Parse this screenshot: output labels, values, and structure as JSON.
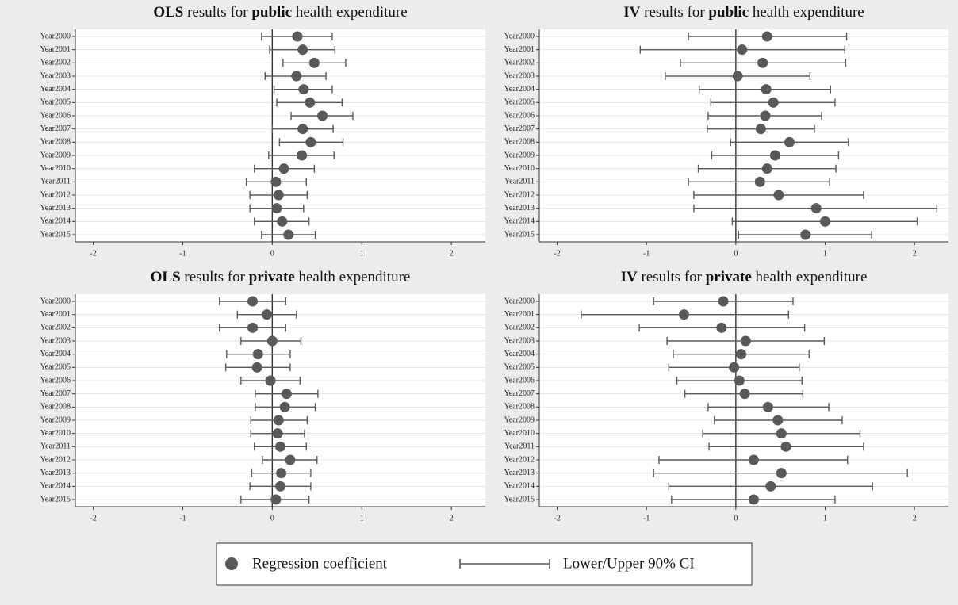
{
  "chart_data": [
    {
      "type": "coefplot",
      "title": [
        {
          "text": "OLS",
          "bold": true
        },
        {
          "text": " results for "
        },
        {
          "text": "public",
          "bold": true
        },
        {
          "text": " health expenditure"
        }
      ],
      "categories": [
        "Year2000",
        "Year2001",
        "Year2002",
        "Year2003",
        "Year2004",
        "Year2005",
        "Year2006",
        "Year2007",
        "Year2008",
        "Year2009",
        "Year2010",
        "Year2011",
        "Year2012",
        "Year2013",
        "Year2014",
        "Year2015"
      ],
      "values": [
        0.28,
        0.34,
        0.47,
        0.27,
        0.35,
        0.42,
        0.56,
        0.34,
        0.43,
        0.33,
        0.13,
        0.04,
        0.07,
        0.05,
        0.11,
        0.18
      ],
      "ci_lower": [
        -0.12,
        -0.03,
        0.12,
        -0.08,
        0.02,
        0.05,
        0.21,
        0.0,
        0.08,
        -0.04,
        -0.2,
        -0.29,
        -0.25,
        -0.25,
        -0.2,
        -0.12
      ],
      "ci_upper": [
        0.67,
        0.7,
        0.82,
        0.6,
        0.67,
        0.78,
        0.9,
        0.68,
        0.79,
        0.69,
        0.47,
        0.38,
        0.39,
        0.35,
        0.41,
        0.48
      ],
      "xlim": [
        -2.2,
        2.38
      ],
      "xticks": [
        -2,
        -1,
        0,
        1,
        2
      ]
    },
    {
      "type": "coefplot",
      "title": [
        {
          "text": "IV",
          "bold": true
        },
        {
          "text": " results for "
        },
        {
          "text": "public",
          "bold": true
        },
        {
          "text": " health expenditure"
        }
      ],
      "categories": [
        "Year2000",
        "Year2001",
        "Year2002",
        "Year2003",
        "Year2004",
        "Year2005",
        "Year2006",
        "Year2007",
        "Year2008",
        "Year2009",
        "Year2010",
        "Year2011",
        "Year2012",
        "Year2013",
        "Year2014",
        "Year2015"
      ],
      "values": [
        0.35,
        0.07,
        0.3,
        0.02,
        0.34,
        0.42,
        0.33,
        0.28,
        0.6,
        0.44,
        0.35,
        0.27,
        0.48,
        0.9,
        1.0,
        0.78
      ],
      "ci_lower": [
        -0.53,
        -1.07,
        -0.62,
        -0.79,
        -0.41,
        -0.28,
        -0.31,
        -0.32,
        -0.06,
        -0.27,
        -0.42,
        -0.53,
        -0.47,
        -0.47,
        -0.04,
        0.03
      ],
      "ci_upper": [
        1.24,
        1.22,
        1.23,
        0.83,
        1.06,
        1.11,
        0.96,
        0.88,
        1.26,
        1.15,
        1.12,
        1.05,
        1.43,
        2.25,
        2.03,
        1.52
      ],
      "xlim": [
        -2.2,
        2.38
      ],
      "xticks": [
        -2,
        -1,
        0,
        1,
        2
      ]
    },
    {
      "type": "coefplot",
      "title": [
        {
          "text": "OLS",
          "bold": true
        },
        {
          "text": " results for "
        },
        {
          "text": "private",
          "bold": true
        },
        {
          "text": " health expenditure"
        }
      ],
      "categories": [
        "Year2000",
        "Year2001",
        "Year2002",
        "Year2003",
        "Year2004",
        "Year2005",
        "Year2006",
        "Year2007",
        "Year2008",
        "Year2009",
        "Year2010",
        "Year2011",
        "Year2012",
        "Year2013",
        "Year2014",
        "Year2015"
      ],
      "values": [
        -0.22,
        -0.06,
        -0.22,
        0.0,
        -0.16,
        -0.17,
        -0.02,
        0.16,
        0.14,
        0.07,
        0.06,
        0.09,
        0.2,
        0.1,
        0.09,
        0.04
      ],
      "ci_lower": [
        -0.59,
        -0.39,
        -0.59,
        -0.35,
        -0.51,
        -0.52,
        -0.35,
        -0.19,
        -0.19,
        -0.24,
        -0.24,
        -0.2,
        -0.11,
        -0.23,
        -0.25,
        -0.35
      ],
      "ci_upper": [
        0.15,
        0.27,
        0.15,
        0.32,
        0.2,
        0.2,
        0.31,
        0.51,
        0.48,
        0.39,
        0.36,
        0.38,
        0.5,
        0.43,
        0.43,
        0.41
      ],
      "xlim": [
        -2.2,
        2.38
      ],
      "xticks": [
        -2,
        -1,
        0,
        1,
        2
      ]
    },
    {
      "type": "coefplot",
      "title": [
        {
          "text": "IV",
          "bold": true
        },
        {
          "text": " results for "
        },
        {
          "text": "private",
          "bold": true
        },
        {
          "text": " health expenditure"
        }
      ],
      "categories": [
        "Year2000",
        "Year2001",
        "Year2002",
        "Year2003",
        "Year2004",
        "Year2005",
        "Year2006",
        "Year2007",
        "Year2008",
        "Year2009",
        "Year2010",
        "Year2011",
        "Year2012",
        "Year2013",
        "Year2014",
        "Year2015"
      ],
      "values": [
        -0.14,
        -0.58,
        -0.16,
        0.11,
        0.06,
        -0.02,
        0.04,
        0.1,
        0.36,
        0.47,
        0.51,
        0.56,
        0.2,
        0.51,
        0.39,
        0.2
      ],
      "ci_lower": [
        -0.92,
        -1.73,
        -1.08,
        -0.77,
        -0.7,
        -0.75,
        -0.66,
        -0.57,
        -0.31,
        -0.24,
        -0.37,
        -0.3,
        -0.86,
        -0.92,
        -0.75,
        -0.72
      ],
      "ci_upper": [
        0.64,
        0.59,
        0.77,
        0.99,
        0.82,
        0.71,
        0.74,
        0.75,
        1.04,
        1.19,
        1.39,
        1.43,
        1.25,
        1.92,
        1.53,
        1.11
      ],
      "xlim": [
        -2.2,
        2.38
      ],
      "xticks": [
        -2,
        -1,
        0,
        1,
        2
      ]
    }
  ],
  "legend": {
    "coefficient": "Regression coefficient",
    "interval": "Lower/Upper 90% CI",
    "color": "#595959"
  }
}
